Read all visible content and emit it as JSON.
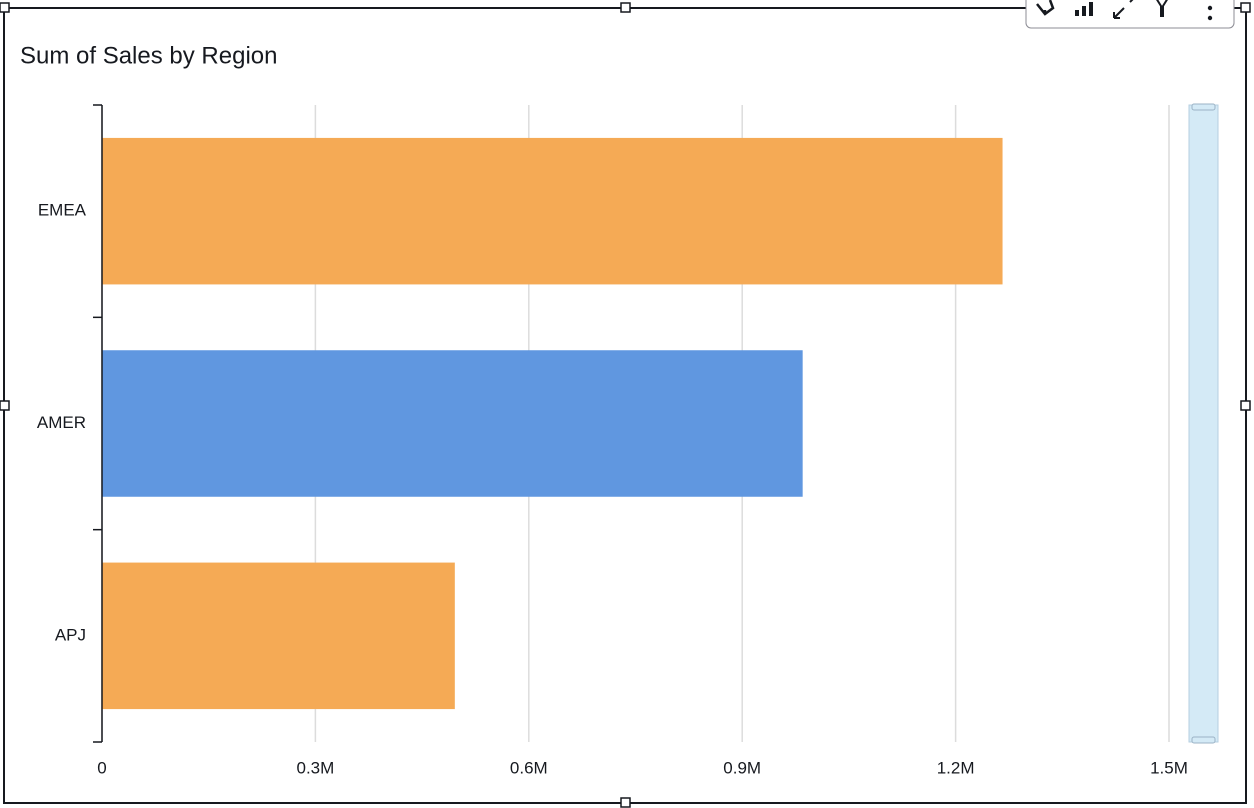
{
  "chart_data": {
    "type": "hbar",
    "title": "Sum of Sales by Region",
    "categories": [
      "EMEA",
      "AMER",
      "APJ"
    ],
    "values": [
      1266000,
      985000,
      496000
    ],
    "colors": [
      "#f5aa55",
      "#6097e0",
      "#f5aa55"
    ],
    "xlim": [
      0,
      1500000
    ],
    "xticks": [
      0,
      {
        "value": 300000,
        "label": "0.3M"
      },
      {
        "value": 600000,
        "label": "0.6M"
      },
      {
        "value": 900000,
        "label": "0.9M"
      },
      {
        "value": 1200000,
        "label": "1.2M"
      },
      {
        "value": 1500000,
        "label": "1.5M"
      }
    ],
    "grid": true
  }
}
